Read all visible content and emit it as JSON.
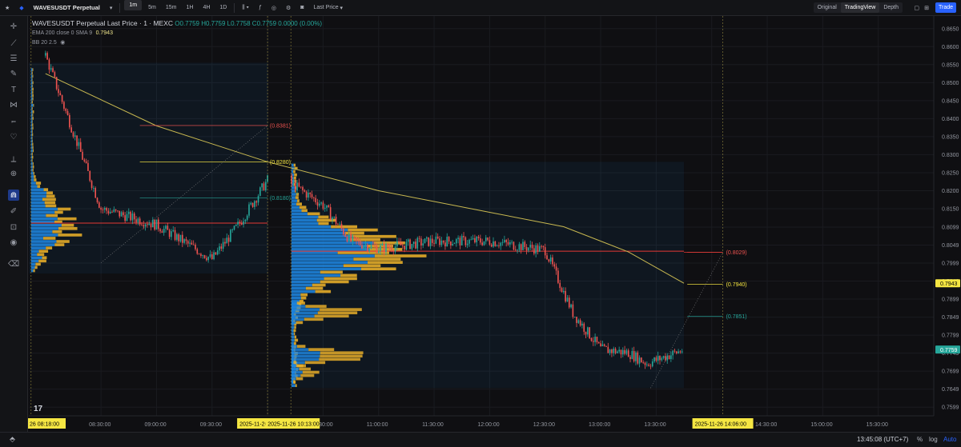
{
  "toolbar": {
    "symbol": "WAVESUSDT Perpetual",
    "intervals": [
      "1m",
      "5m",
      "15m",
      "1H",
      "4H",
      "1D"
    ],
    "active_interval": "1m",
    "price_type": "Last Price",
    "views": [
      "Original",
      "TradingView",
      "Depth"
    ],
    "active_view": "TradingView",
    "trade_label": "Trade"
  },
  "legend": {
    "title": "WAVESUSDT Perpetual Last Price · 1 · MEXC",
    "ohlc": "O0.7759 H0.7759 L0.7758 C0.7759 0.0000 (0.00%)",
    "ema_label": "EMA 200 close 0 SMA 9",
    "ema_value": "0.7943",
    "bb_label": "BB 20 2.5"
  },
  "bottom": {
    "time": "13:45:08 (UTC+7)",
    "percent": "%",
    "log": "log",
    "auto": "Auto"
  },
  "colors": {
    "up": "#26a69a",
    "down": "#ef5350",
    "ema": "#c8b850",
    "profile_blue": "#1e88e5",
    "profile_orange": "#f0b429",
    "poc": "#e53935",
    "accent": "#2962ff"
  },
  "chart_data": {
    "type": "candlestick",
    "y_axis": {
      "min": 0.7575,
      "max": 0.8685,
      "ticks": [
        "0.8650",
        "0.8600",
        "0.8550",
        "0.8500",
        "0.8450",
        "0.8400",
        "0.8350",
        "0.8300",
        "0.8250",
        "0.8200",
        "0.8150",
        "0.8099",
        "0.8049",
        "0.7999",
        "0.7949",
        "0.7899",
        "0.7849",
        "0.7799",
        "0.7749",
        "0.7699",
        "0.7649",
        "0.7599"
      ]
    },
    "x_axis": {
      "labels": [
        "08:30:00",
        "09:00:00",
        "09:30:00",
        "10:00:00",
        "10:30:00",
        "11:00:00",
        "11:30:00",
        "12:00:00",
        "12:30:00",
        "13:00:00",
        "13:30:00",
        "14:00:00",
        "14:30:00",
        "15:00:00",
        "15:30:00"
      ],
      "highlight_labels": [
        "26   08:18:00",
        "2025-11-26   09",
        "2025-11-26   10:13:00",
        "2025-11-26   14:06:00"
      ]
    },
    "price_tags": [
      {
        "value": "0.7943",
        "price": 0.7943,
        "color": "#f5e642",
        "text_color": "#000000"
      },
      {
        "value": "0.7759",
        "price": 0.7759,
        "color": "#26a69a",
        "text_color": "#ffffff"
      }
    ],
    "fib_labels": [
      {
        "text": "(0.8381)",
        "price": 0.8381,
        "color": "#ef5350"
      },
      {
        "text": "(0.8280)",
        "price": 0.828,
        "color": "#f5e642"
      },
      {
        "text": "(0.8180)",
        "price": 0.818,
        "color": "#26a69a"
      },
      {
        "text": "(0.8029)",
        "price": 0.8029,
        "color": "#ef5350"
      },
      {
        "text": "(0.7940)",
        "price": 0.794,
        "color": "#f5e642"
      },
      {
        "text": "(0.7851)",
        "price": 0.7851,
        "color": "#26a69a"
      }
    ],
    "anchors": [
      {
        "label": "08:00",
        "price": 0.8575
      },
      {
        "label": "08:30",
        "price": 0.815
      },
      {
        "label": "09:00",
        "price": 0.8105
      },
      {
        "label": "09:30",
        "price": 0.801
      },
      {
        "label": "09:45",
        "price": 0.811
      },
      {
        "label": "10:00",
        "price": 0.823
      },
      {
        "label": "10:05",
        "price": 0.8295
      },
      {
        "label": "10:13",
        "price": 0.822
      },
      {
        "label": "10:30",
        "price": 0.816
      },
      {
        "label": "10:45",
        "price": 0.806
      },
      {
        "label": "11:00",
        "price": 0.804
      },
      {
        "label": "11:30",
        "price": 0.806
      },
      {
        "label": "12:00",
        "price": 0.806
      },
      {
        "label": "12:30",
        "price": 0.8035
      },
      {
        "label": "12:45",
        "price": 0.786
      },
      {
        "label": "13:00",
        "price": 0.776
      },
      {
        "label": "13:15",
        "price": 0.775
      },
      {
        "label": "13:25",
        "price": 0.772
      },
      {
        "label": "13:45",
        "price": 0.7759
      }
    ],
    "ema200": [
      {
        "label": "08:00",
        "price": 0.8525
      },
      {
        "label": "09:00",
        "price": 0.838
      },
      {
        "label": "10:00",
        "price": 0.828
      },
      {
        "label": "11:00",
        "price": 0.82
      },
      {
        "label": "12:00",
        "price": 0.814
      },
      {
        "label": "12:40",
        "price": 0.81
      },
      {
        "label": "13:15",
        "price": 0.803
      },
      {
        "label": "13:45",
        "price": 0.7943
      }
    ]
  }
}
